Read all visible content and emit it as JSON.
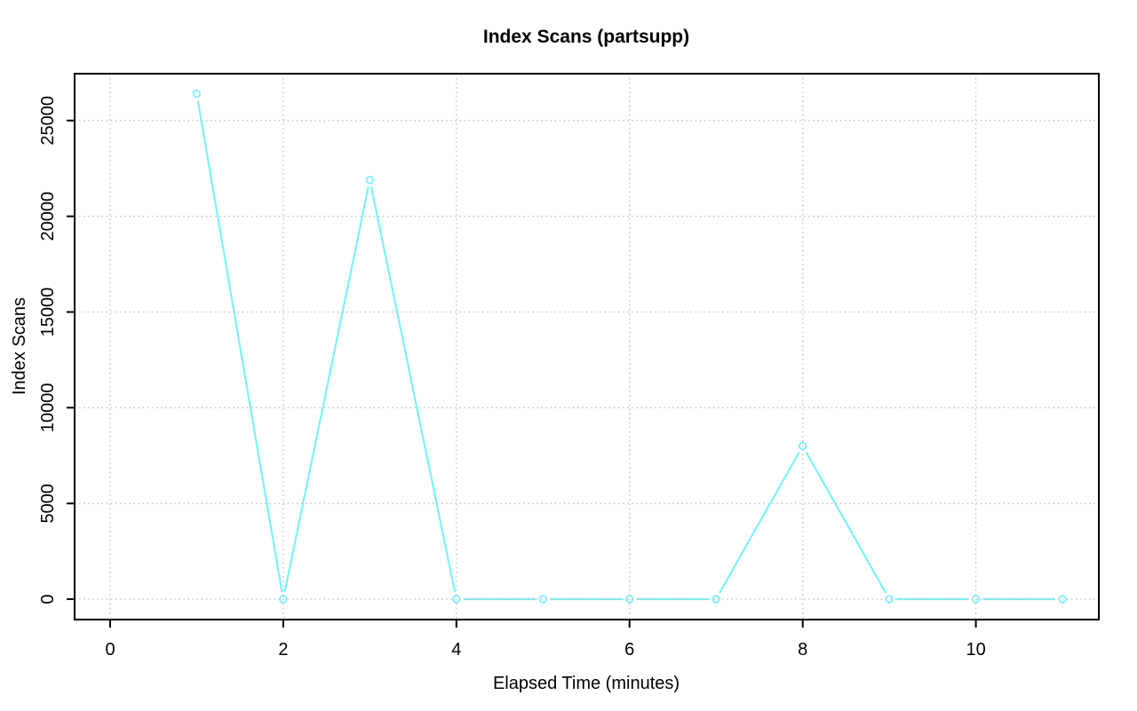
{
  "page": {
    "background": "#FFFFFF"
  },
  "chart_data": {
    "type": "line",
    "title": "Index Scans (partsupp)",
    "xlabel": "Elapsed Time (minutes)",
    "ylabel": "Index Scans",
    "x": [
      1,
      2,
      3,
      4,
      5,
      6,
      7,
      8,
      9,
      10,
      11
    ],
    "series": [
      {
        "name": "index scans",
        "values": [
          26400,
          0,
          21900,
          0,
          0,
          0,
          0,
          8000,
          0,
          0,
          0
        ],
        "color": "#7DF0FA",
        "marker": "open-circle",
        "line_style": "solid-with-gaps-at-points"
      }
    ],
    "x_ticks": {
      "values": [
        0,
        2,
        4,
        6,
        8,
        10
      ],
      "labels": [
        "0",
        "2",
        "4",
        "6",
        "8",
        "10"
      ]
    },
    "y_ticks": {
      "values": [
        0,
        5000,
        10000,
        15000,
        20000,
        25000
      ],
      "labels": [
        "0",
        "5000",
        "10000",
        "15000",
        "20000",
        "25000"
      ]
    },
    "xlim": [
      -0.41,
      11.42
    ],
    "ylim": [
      -1066,
      27450
    ],
    "grid": {
      "show": true,
      "style": "dotted",
      "color": "#BDBDBD",
      "x_at": [
        0,
        2,
        4,
        6,
        8,
        10
      ],
      "y_at": [
        0,
        5000,
        10000,
        15000,
        20000,
        25000
      ],
      "drawn_over_data": true
    },
    "legend": {
      "show": false
    },
    "axis_color": "#000000",
    "text_color": "#000000",
    "background": "#FFFFFF"
  }
}
